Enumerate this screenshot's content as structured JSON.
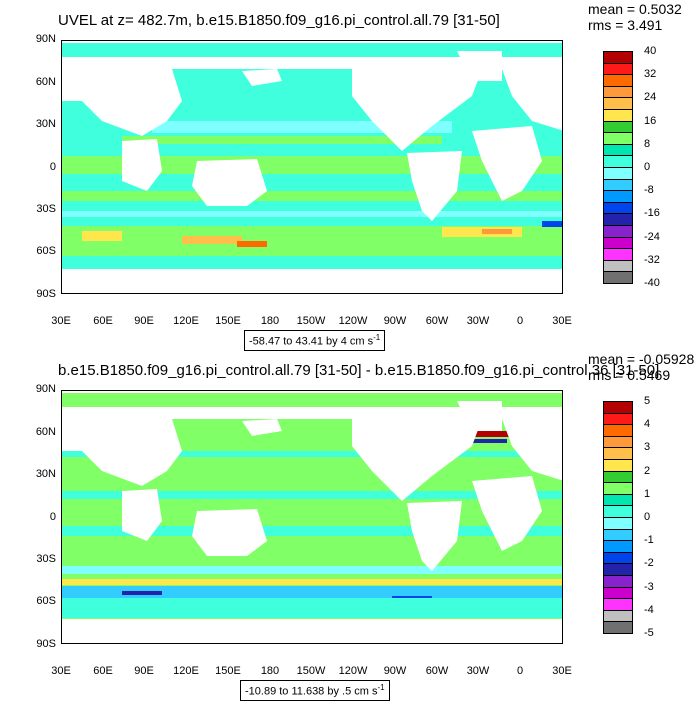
{
  "top": {
    "title": "UVEL at z= 482.7m, b.e15.B1850.f09_g16.pi_control.all.79 [31-50]",
    "mean": "mean = 0.5032",
    "rms": "rms = 3.491",
    "range_text": "-58.47 to 43.41 by 4 cm s",
    "range_unit_exp": "-1",
    "colorbar": {
      "labels": [
        "40",
        "32",
        "24",
        "16",
        "8",
        "0",
        "-8",
        "-16",
        "-24",
        "-32",
        "-40"
      ],
      "colors": [
        "#b30000",
        "#ff1a1a",
        "#ff6a00",
        "#ff9a3c",
        "#ffbf4a",
        "#ffe64d",
        "#33cc33",
        "#80ff66",
        "#00e6b0",
        "#40ffdd",
        "#80ffff",
        "#33ccff",
        "#0099ff",
        "#0044ee",
        "#2222aa",
        "#8822cc",
        "#cc00cc",
        "#ff33ff",
        "#c0c0c0",
        "#707070"
      ]
    }
  },
  "bottom": {
    "title": "b.e15.B1850.f09_g16.pi_control.all.79 [31-50] - b.e15.B1850.f09_g16.pi_control.36 [31-50]",
    "mean": "mean = -0.05928",
    "rms": "rms = 0.5469",
    "range_text": "-10.89 to 11.638 by .5 cm s",
    "range_unit_exp": "-1",
    "colorbar": {
      "labels": [
        "5",
        "4",
        "3",
        "2",
        "1",
        "0",
        "-1",
        "-2",
        "-3",
        "-4",
        "-5"
      ],
      "colors": [
        "#b30000",
        "#ff1a1a",
        "#ff6a00",
        "#ff9a3c",
        "#ffbf4a",
        "#ffe64d",
        "#33cc33",
        "#80ff66",
        "#00e6b0",
        "#40ffdd",
        "#80ffff",
        "#33ccff",
        "#0099ff",
        "#0044ee",
        "#2222aa",
        "#8822cc",
        "#cc00cc",
        "#ff33ff",
        "#c0c0c0",
        "#707070"
      ]
    }
  },
  "axes": {
    "lat_labels": [
      "90N",
      "60N",
      "30N",
      "0",
      "30S",
      "60S",
      "90S"
    ],
    "lon_labels": [
      "30E",
      "60E",
      "90E",
      "120E",
      "150E",
      "180",
      "150W",
      "120W",
      "90W",
      "60W",
      "30W",
      "0",
      "30E"
    ]
  },
  "colors": {
    "land": "#ffffff",
    "ocean_base": "#40ffdd",
    "ocean_band": "#80ff66",
    "ocean_light": "#80ffff"
  }
}
